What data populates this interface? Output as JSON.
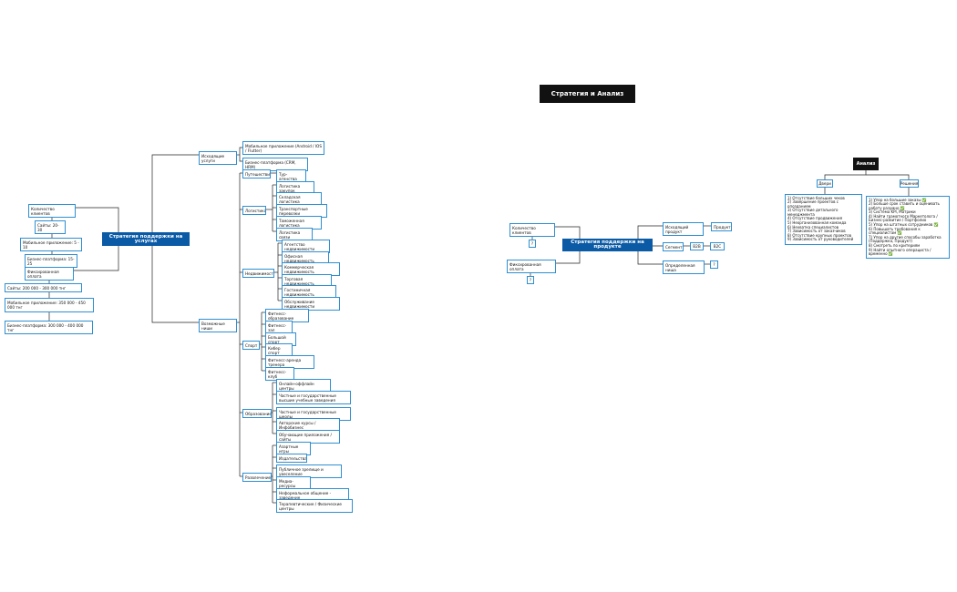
{
  "title": "Стратегия и Анализ",
  "services_map": {
    "center": "Стратегия поддержки на услугах",
    "clients": {
      "label": "Количество клиентов",
      "items": [
        "Сайты: 20-30",
        "Мобильное приложение: 5 - 10",
        "Бизнес-платформа: 15-25"
      ]
    },
    "payment": {
      "label": "Фиксированная оплата",
      "items": [
        "Сайты: 200 000 - 300 000 тнг",
        "Мобильное приложение: 350 000 - 450 000 тнг",
        "Бизнес-платформа: 300 000 - 400 000 тнг"
      ]
    },
    "outgoing": {
      "label": "Исходящие услуги",
      "items": [
        "Мобильное приложение (Android / IOS / Flutter)",
        "Бизнес-платформа (CRM, HRM)"
      ]
    },
    "niches": {
      "label": "Возможные ниши",
      "groups": [
        {
          "label": "Путешествия",
          "items": [
            "Тур-агенства"
          ]
        },
        {
          "label": "Логистика",
          "items": [
            "Логистика закупок",
            "Складская логистика",
            "Транспортные перевозки",
            "Таможенная логистика",
            "Логистика связи"
          ]
        },
        {
          "label": "Недвижимость",
          "items": [
            "Агентство недвижимости",
            "Офисная недвижимость",
            "Коммерческая недвижимость",
            "Торговая недвижимость",
            "Гостиничная недвижимость",
            "Обслуживание недвижимости"
          ]
        },
        {
          "label": "Спорт",
          "items": [
            "Фитнесс-образование",
            "Фитнесс-зал",
            "Большой спорт",
            "Кибер спорт",
            "Фитнесс-аренда тренера",
            "Фитнесс-клуб"
          ]
        },
        {
          "label": "Образование",
          "items": [
            "Онлайн-оффлайн центры",
            "Частные и государственные высшие учебные заведения",
            "Частные и государственные школы",
            "Авторские курсы / Инфобизнес",
            "Обучающие приложения / сайты"
          ]
        },
        {
          "label": "Развлечение",
          "items": [
            "Азартные игры",
            "Издательства",
            "Публичное зрелище и увеселение",
            "Медиа-ресурсы",
            "Неформальное общение - заведение",
            "Терапевтические / Физические центры"
          ]
        }
      ]
    }
  },
  "product_map": {
    "center": "Стратегия поддержки на продукте",
    "clients": {
      "label": "Количество клиентов",
      "value": "?"
    },
    "payment": {
      "label": "Фиксированная оплата",
      "value": "?"
    },
    "product": {
      "label": "Исходящий продукт",
      "value": "Продукт"
    },
    "segment": {
      "label": "Сегмент",
      "items": [
        "B2B",
        "B2C"
      ]
    },
    "niche": {
      "label": "Определенная ниша",
      "value": "?"
    }
  },
  "analysis": {
    "label": "Анализ",
    "problems": {
      "label": "Двери",
      "items": [
        "1) Отсутствие больших чеков",
        "2) Завершение проектов с опозданием",
        "3) Отсутствие детального менеджмента",
        "4) Отсутствие продвижения",
        "5) Неорганизованная команда",
        "6) Нехватка специалистов",
        "7) Зависимость от заказчиков",
        "8) Отсутствие крупных проектов",
        "9) Зависимость от руководителей"
      ]
    },
    "solutions": {
      "label": "Решения",
      "items": [
        "1) Упор на большие заказы ✅",
        "2) Больше срок ставить и оценивать работу разумно ✅",
        "3) Система KPI, Матрики",
        "4) Найти грамотного Маркетолога / Бизнес-развитие / Портфолио",
        "5) Упор на штатных сотрудников ✅",
        "6) Повышать требования к специалистам ✅",
        "7) Упор на другие способы заработка (Поддержка, Продукт)",
        "8) Смотреть по критериям",
        "9) Найти опытного операциста / временно ✅"
      ]
    }
  }
}
